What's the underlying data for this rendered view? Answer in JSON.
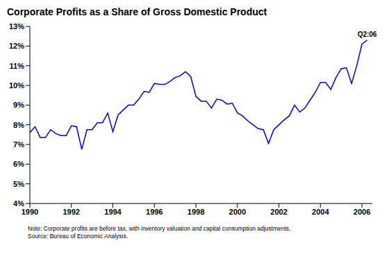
{
  "chart_data": {
    "type": "line",
    "title": "Corporate Profits as a Share of Gross Domestic Product",
    "notes": [
      "Note: Corporate profits are before tax, with inventory valuation and capital consumption adjustments.",
      "Source: Bureau of Economic Analysis."
    ],
    "x": [
      1990,
      1990.25,
      1990.5,
      1990.75,
      1991,
      1991.25,
      1991.5,
      1991.75,
      1992,
      1992.25,
      1992.5,
      1992.75,
      1993,
      1993.25,
      1993.5,
      1993.75,
      1994,
      1994.25,
      1994.5,
      1994.75,
      1995,
      1995.25,
      1995.5,
      1995.75,
      1996,
      1996.25,
      1996.5,
      1996.75,
      1997,
      1997.25,
      1997.5,
      1997.75,
      1998,
      1998.25,
      1998.5,
      1998.75,
      1999,
      1999.25,
      1999.5,
      1999.75,
      2000,
      2000.25,
      2000.5,
      2000.75,
      2001,
      2001.25,
      2001.5,
      2001.75,
      2002,
      2002.25,
      2002.5,
      2002.75,
      2003,
      2003.25,
      2003.5,
      2003.75,
      2004,
      2004.25,
      2004.5,
      2004.75,
      2005,
      2005.25,
      2005.5,
      2005.75,
      2006,
      2006.25
    ],
    "series": [
      {
        "name": "Corporate Profits as a Share of Gross Domestic Product",
        "color": "#0000cc",
        "values": [
          7.6,
          7.9,
          7.35,
          7.35,
          7.75,
          7.55,
          7.45,
          7.45,
          7.95,
          7.9,
          6.75,
          7.75,
          7.75,
          8.1,
          8.1,
          8.6,
          7.65,
          8.5,
          8.75,
          9.0,
          9.0,
          9.3,
          9.7,
          9.65,
          10.1,
          10.05,
          10.05,
          10.2,
          10.4,
          10.5,
          10.7,
          10.45,
          9.45,
          9.2,
          9.2,
          8.85,
          9.3,
          9.25,
          9.05,
          9.1,
          8.6,
          8.45,
          8.2,
          8.0,
          7.8,
          7.75,
          7.05,
          7.75,
          8.0,
          8.25,
          8.45,
          9.0,
          8.65,
          8.85,
          9.25,
          9.65,
          10.15,
          10.15,
          9.8,
          10.4,
          10.85,
          10.9,
          10.1,
          11.0,
          12.1,
          12.3
        ]
      }
    ],
    "xlim": [
      1990,
      2006.5
    ],
    "xticks": [
      1990,
      1992,
      1994,
      1996,
      1998,
      2000,
      2002,
      2004,
      2006
    ],
    "ylim": [
      4,
      13
    ],
    "yticks": [
      {
        "value": 4,
        "label": "4%"
      },
      {
        "value": 5,
        "label": "5%"
      },
      {
        "value": 6,
        "label": "6%"
      },
      {
        "value": 7,
        "label": "7%"
      },
      {
        "value": 8,
        "label": "8%"
      },
      {
        "value": 9,
        "label": "9%"
      },
      {
        "value": 10,
        "label": "10%"
      },
      {
        "value": 11,
        "label": "11%"
      },
      {
        "value": 12,
        "label": "12%"
      },
      {
        "value": 13,
        "label": "13%"
      }
    ],
    "annotations": [
      {
        "text": "Q2:06",
        "x": 2006.25,
        "y": 12.3
      }
    ],
    "grid": false
  }
}
